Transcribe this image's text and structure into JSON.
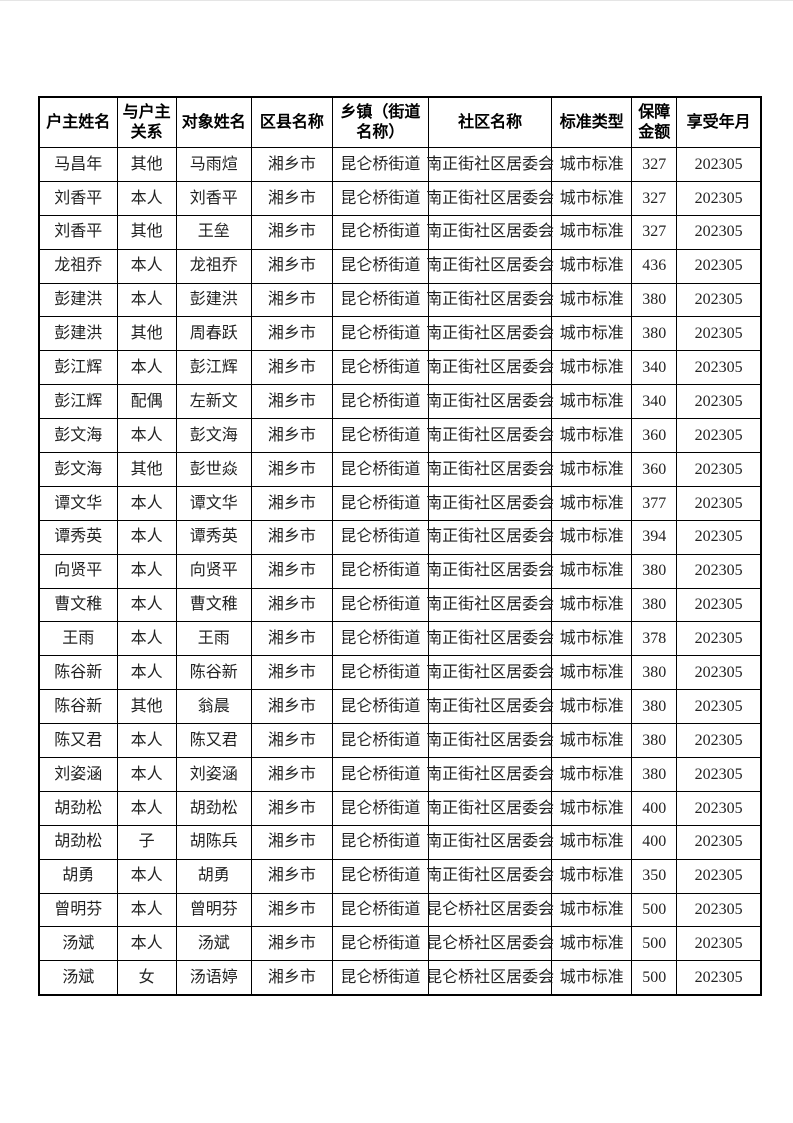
{
  "colors": {
    "page_background": "#ffffff",
    "table_border": "#000000",
    "header_text": "#000000",
    "body_text": "#222222"
  },
  "table": {
    "headers": [
      "户主姓名",
      "与户主关系",
      "对象姓名",
      "区县名称",
      "乡镇（街道名称）",
      "社区名称",
      "标准类型",
      "保障金额",
      "享受年月"
    ],
    "rows": [
      [
        "马昌年",
        "其他",
        "马雨煊",
        "湘乡市",
        "昆仑桥街道",
        "南正街社区居委会",
        "城市标准",
        "327",
        "202305"
      ],
      [
        "刘香平",
        "本人",
        "刘香平",
        "湘乡市",
        "昆仑桥街道",
        "南正街社区居委会",
        "城市标准",
        "327",
        "202305"
      ],
      [
        "刘香平",
        "其他",
        "王垒",
        "湘乡市",
        "昆仑桥街道",
        "南正街社区居委会",
        "城市标准",
        "327",
        "202305"
      ],
      [
        "龙祖乔",
        "本人",
        "龙祖乔",
        "湘乡市",
        "昆仑桥街道",
        "南正街社区居委会",
        "城市标准",
        "436",
        "202305"
      ],
      [
        "彭建洪",
        "本人",
        "彭建洪",
        "湘乡市",
        "昆仑桥街道",
        "南正街社区居委会",
        "城市标准",
        "380",
        "202305"
      ],
      [
        "彭建洪",
        "其他",
        "周春跃",
        "湘乡市",
        "昆仑桥街道",
        "南正街社区居委会",
        "城市标准",
        "380",
        "202305"
      ],
      [
        "彭江辉",
        "本人",
        "彭江辉",
        "湘乡市",
        "昆仑桥街道",
        "南正街社区居委会",
        "城市标准",
        "340",
        "202305"
      ],
      [
        "彭江辉",
        "配偶",
        "左新文",
        "湘乡市",
        "昆仑桥街道",
        "南正街社区居委会",
        "城市标准",
        "340",
        "202305"
      ],
      [
        "彭文海",
        "本人",
        "彭文海",
        "湘乡市",
        "昆仑桥街道",
        "南正街社区居委会",
        "城市标准",
        "360",
        "202305"
      ],
      [
        "彭文海",
        "其他",
        "彭世焱",
        "湘乡市",
        "昆仑桥街道",
        "南正街社区居委会",
        "城市标准",
        "360",
        "202305"
      ],
      [
        "谭文华",
        "本人",
        "谭文华",
        "湘乡市",
        "昆仑桥街道",
        "南正街社区居委会",
        "城市标准",
        "377",
        "202305"
      ],
      [
        "谭秀英",
        "本人",
        "谭秀英",
        "湘乡市",
        "昆仑桥街道",
        "南正街社区居委会",
        "城市标准",
        "394",
        "202305"
      ],
      [
        "向贤平",
        "本人",
        "向贤平",
        "湘乡市",
        "昆仑桥街道",
        "南正街社区居委会",
        "城市标准",
        "380",
        "202305"
      ],
      [
        "曹文稚",
        "本人",
        "曹文稚",
        "湘乡市",
        "昆仑桥街道",
        "南正街社区居委会",
        "城市标准",
        "380",
        "202305"
      ],
      [
        "王雨",
        "本人",
        "王雨",
        "湘乡市",
        "昆仑桥街道",
        "南正街社区居委会",
        "城市标准",
        "378",
        "202305"
      ],
      [
        "陈谷新",
        "本人",
        "陈谷新",
        "湘乡市",
        "昆仑桥街道",
        "南正街社区居委会",
        "城市标准",
        "380",
        "202305"
      ],
      [
        "陈谷新",
        "其他",
        "翁晨",
        "湘乡市",
        "昆仑桥街道",
        "南正街社区居委会",
        "城市标准",
        "380",
        "202305"
      ],
      [
        "陈又君",
        "本人",
        "陈又君",
        "湘乡市",
        "昆仑桥街道",
        "南正街社区居委会",
        "城市标准",
        "380",
        "202305"
      ],
      [
        "刘姿涵",
        "本人",
        "刘姿涵",
        "湘乡市",
        "昆仑桥街道",
        "南正街社区居委会",
        "城市标准",
        "380",
        "202305"
      ],
      [
        "胡劲松",
        "本人",
        "胡劲松",
        "湘乡市",
        "昆仑桥街道",
        "南正街社区居委会",
        "城市标准",
        "400",
        "202305"
      ],
      [
        "胡劲松",
        "子",
        "胡陈兵",
        "湘乡市",
        "昆仑桥街道",
        "南正街社区居委会",
        "城市标准",
        "400",
        "202305"
      ],
      [
        "胡勇",
        "本人",
        "胡勇",
        "湘乡市",
        "昆仑桥街道",
        "南正街社区居委会",
        "城市标准",
        "350",
        "202305"
      ],
      [
        "曾明芬",
        "本人",
        "曾明芬",
        "湘乡市",
        "昆仑桥街道",
        "昆仑桥社区居委会",
        "城市标准",
        "500",
        "202305"
      ],
      [
        "汤斌",
        "本人",
        "汤斌",
        "湘乡市",
        "昆仑桥街道",
        "昆仑桥社区居委会",
        "城市标准",
        "500",
        "202305"
      ],
      [
        "汤斌",
        "女",
        "汤语婷",
        "湘乡市",
        "昆仑桥街道",
        "昆仑桥社区居委会",
        "城市标准",
        "500",
        "202305"
      ]
    ]
  }
}
